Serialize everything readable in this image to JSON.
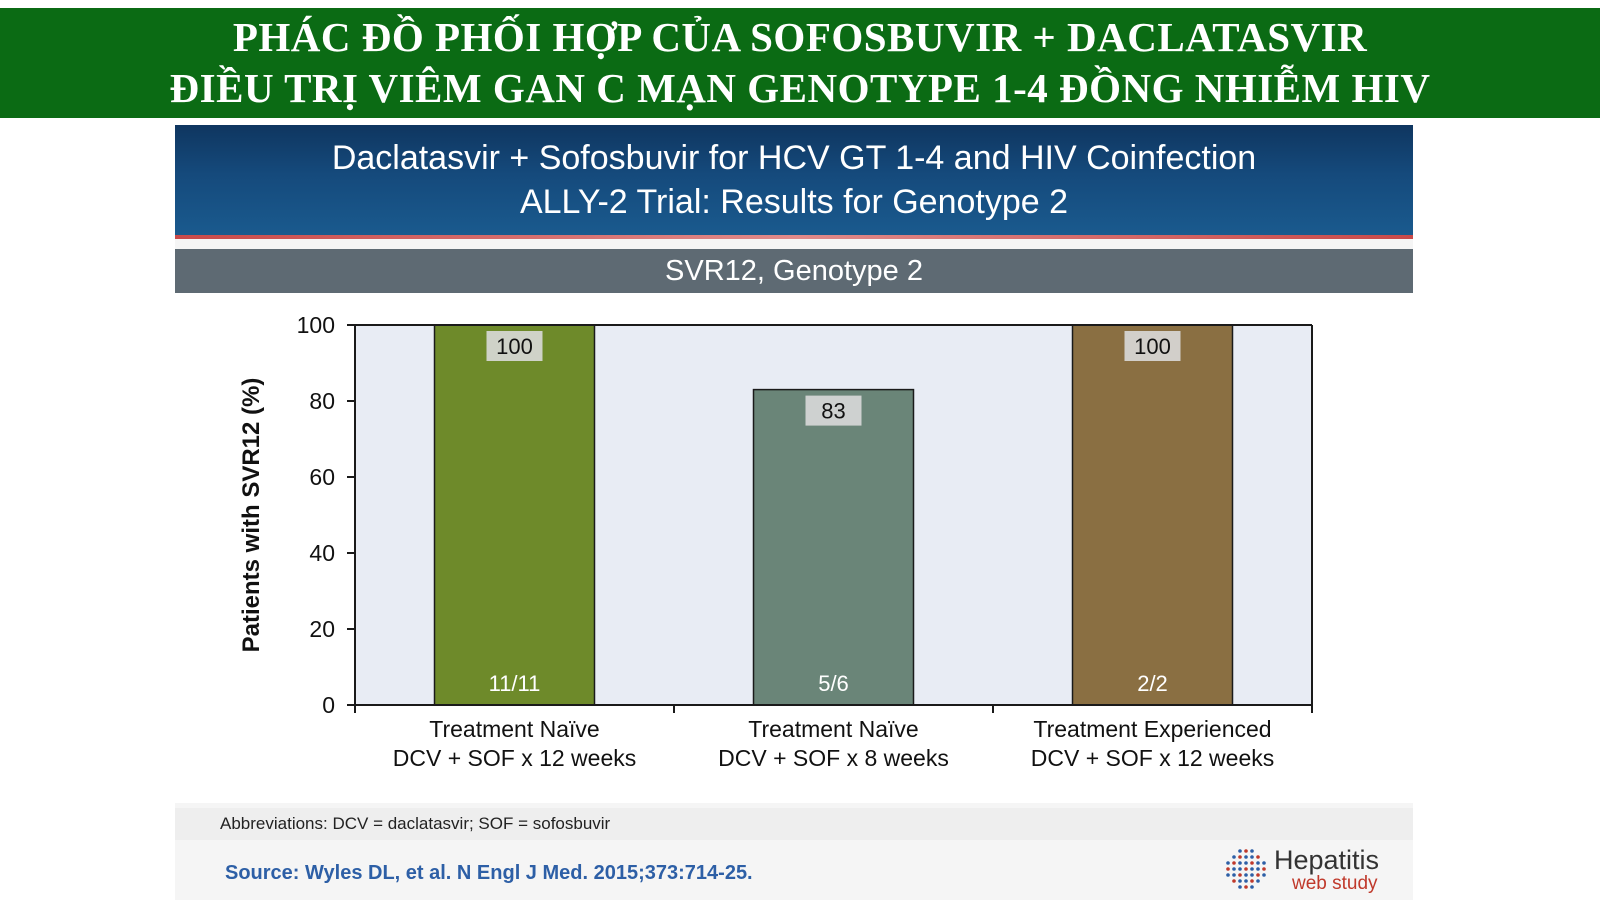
{
  "banner": {
    "line1": "PHÁC ĐỒ PHỐI HỢP CỦA SOFOSBUVIR + DACLATASVIR",
    "line2": "ĐIỀU TRỊ VIÊM GAN C MẠN GENOTYPE 1-4 ĐỒNG NHIỄM HIV"
  },
  "slide": {
    "title_line1": "Daclatasvir + Sofosbuvir for HCV GT 1-4 and HIV Coinfection",
    "title_line2": "ALLY-2 Trial: Results for Genotype 2",
    "subtitle": "SVR12, Genotype 2",
    "abbreviations": "Abbreviations: DCV = daclatasvir; SOF = sofosbuvir"
  },
  "footer": {
    "source": "Source: Wyles DL, et al. N Engl J Med. 2015;373:714-25.",
    "logo_line1": "Hepatitis",
    "logo_line2": "web study"
  },
  "chart_data": {
    "type": "bar",
    "title": "SVR12, Genotype 2",
    "ylabel": "Patients with SVR12 (%)",
    "ylim": [
      0,
      100
    ],
    "yticks": [
      0,
      20,
      40,
      60,
      80,
      100
    ],
    "grid": false,
    "categories": [
      [
        "Treatment Naïve",
        "DCV + SOF x 12 weeks"
      ],
      [
        "Treatment Naïve",
        "DCV + SOF x 8 weeks"
      ],
      [
        "Treatment Experienced",
        "DCV + SOF x 12 weeks"
      ]
    ],
    "values": [
      100,
      83,
      100
    ],
    "value_labels": [
      "100",
      "83",
      "100"
    ],
    "counts": [
      "11/11",
      "5/6",
      "2/2"
    ],
    "colors": [
      "#6e8a2a",
      "#6a8578",
      "#8a6f42"
    ],
    "plot_background": "#e8ecf4"
  }
}
